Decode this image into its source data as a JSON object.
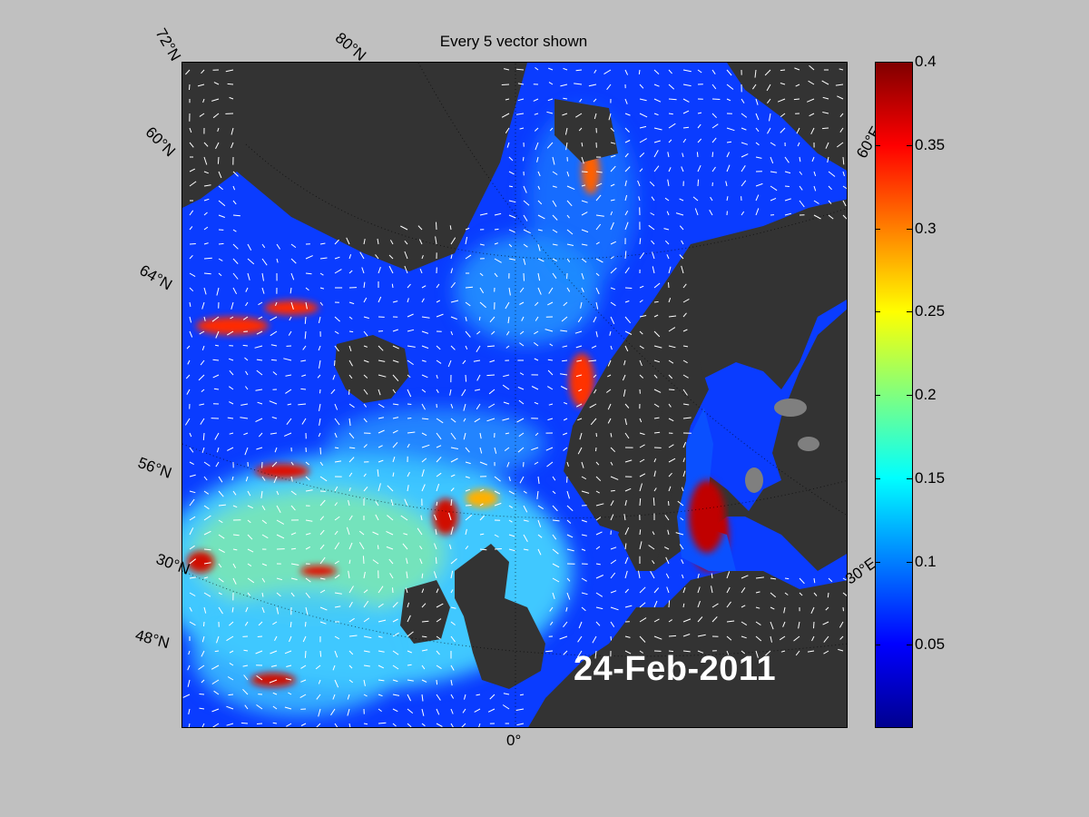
{
  "title": "Every 5 vector shown",
  "date": "24-Feb-2011",
  "colors": {
    "background": "#c0c0c0",
    "land": "#333333",
    "ice_land": "#7f7f7f",
    "vector": "#ffffff"
  },
  "lat_labels": [
    "72°N",
    "60°N",
    "64°N",
    "56°N",
    "30°N",
    "48°N"
  ],
  "lon_labels": [
    "80°N",
    "60°E",
    "30°E",
    "0°"
  ],
  "colorbar": {
    "colormap": "jet",
    "min": 0,
    "max": 0.4,
    "ticks": [
      "0.4",
      "0.35",
      "0.3",
      "0.25",
      "0.2",
      "0.15",
      "0.1",
      "0.05"
    ],
    "tick_values": [
      0.4,
      0.35,
      0.3,
      0.25,
      0.2,
      0.15,
      0.1,
      0.05
    ]
  }
}
